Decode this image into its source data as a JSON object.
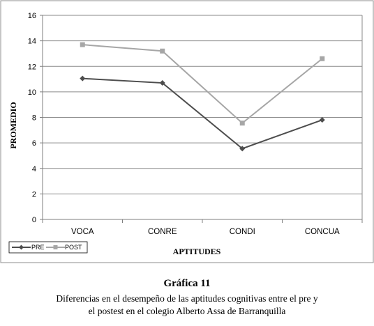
{
  "chart_data": {
    "type": "line",
    "categories": [
      "VOCA",
      "CONRE",
      "CONDI",
      "CONCUA"
    ],
    "series": [
      {
        "name": "PRE",
        "values": [
          11.05,
          10.7,
          5.55,
          7.8
        ],
        "color": "#4d4d4d",
        "marker": "diamond"
      },
      {
        "name": "POST",
        "values": [
          13.7,
          13.2,
          7.55,
          12.6
        ],
        "color": "#a6a6a6",
        "marker": "square"
      }
    ],
    "xlabel": "APTITUDES",
    "ylabel": "PROMEDIO",
    "ylim": [
      0,
      16
    ],
    "yticks": [
      0,
      2,
      4,
      6,
      8,
      10,
      12,
      14,
      16
    ],
    "grid": true,
    "legend_position": "bottom-left"
  },
  "caption": {
    "title": "Gráfica 11",
    "line1": "Diferencias en el desempeño de las aptitudes cognitivas entre el pre y",
    "line2": "el postest en el colegio Alberto Assa de Barranquilla"
  }
}
